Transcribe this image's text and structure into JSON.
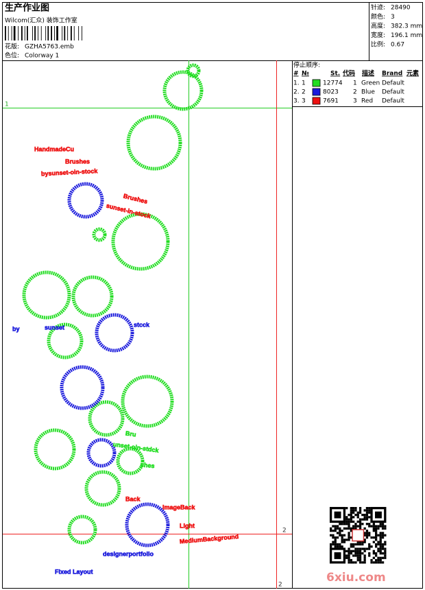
{
  "header": {
    "title": "生产作业图",
    "company": "Wilcom(汇众) 装饰工作室",
    "design_file": {
      "label": "花版:",
      "value": "GZHA5763.emb"
    },
    "colorway": {
      "label": "色位:",
      "value": "Colorway 1"
    }
  },
  "stats": [
    {
      "label": "针迹:",
      "value": "28490"
    },
    {
      "label": "颜色:",
      "value": "3"
    },
    {
      "label": "高度:",
      "value": "382.3 mm"
    },
    {
      "label": "宽度:",
      "value": "196.1 mm"
    },
    {
      "label": "比例:",
      "value": "0.67"
    }
  ],
  "stop_sequence": {
    "title": "停止顺序:",
    "columns": [
      "#",
      "№",
      "St.",
      "代码",
      "描述",
      "Brand",
      "元素"
    ],
    "rows": [
      {
        "index": "1.",
        "number": "1",
        "color": "#22dd22",
        "stitches": "12774",
        "code": "1",
        "description": "Green",
        "brand": "Default"
      },
      {
        "index": "2.",
        "number": "2",
        "color": "#1a1adc",
        "stitches": "8023",
        "code": "2",
        "description": "Blue",
        "brand": "Default"
      },
      {
        "index": "3.",
        "number": "3",
        "color": "#ee1111",
        "stitches": "7691",
        "code": "3",
        "description": "Red",
        "brand": "Default"
      }
    ]
  },
  "guide_labels": [
    "1",
    "2",
    "2"
  ],
  "design_texts": [
    "HandmadeCu",
    "Brushes",
    "bysunset-oin-stock",
    "Brushes",
    "sunset-in-stock",
    "by",
    "sunset",
    "stcck",
    "Bru",
    "unset-oin-stdck",
    "shes",
    "Back",
    "ImageBack",
    "Light",
    "MediumBackground",
    "designerportfolio",
    "Fixed Layout"
  ],
  "watermark": "6xiu.com"
}
